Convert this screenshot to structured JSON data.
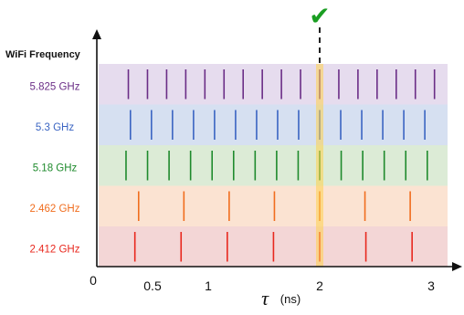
{
  "chart_data": {
    "type": "diagram",
    "ylabel": "WiFi Frequency",
    "xlabel_symbol": "τ",
    "xlabel_unit": "(ns)",
    "x_ticks": [
      "0",
      "0.5",
      "1",
      "2",
      "3"
    ],
    "highlight_x": 2,
    "highlight_mark": "✔",
    "rows": [
      {
        "label": "5.825 GHz",
        "color": "#6a2d86",
        "bg": "#e6dcee",
        "period_ns": 0.1717
      },
      {
        "label": "5.3 GHz",
        "color": "#3a64c2",
        "bg": "#d6e0f1",
        "period_ns": 0.1887
      },
      {
        "label": "5.18 GHz",
        "color": "#1e8a2c",
        "bg": "#dcebd6",
        "period_ns": 0.1931
      },
      {
        "label": "2.462 GHz",
        "color": "#f06d1e",
        "bg": "#fbe3d2",
        "period_ns": 0.4062
      },
      {
        "label": "2.412 GHz",
        "color": "#e8281e",
        "bg": "#f3d6d6",
        "period_ns": 0.4146
      }
    ]
  }
}
